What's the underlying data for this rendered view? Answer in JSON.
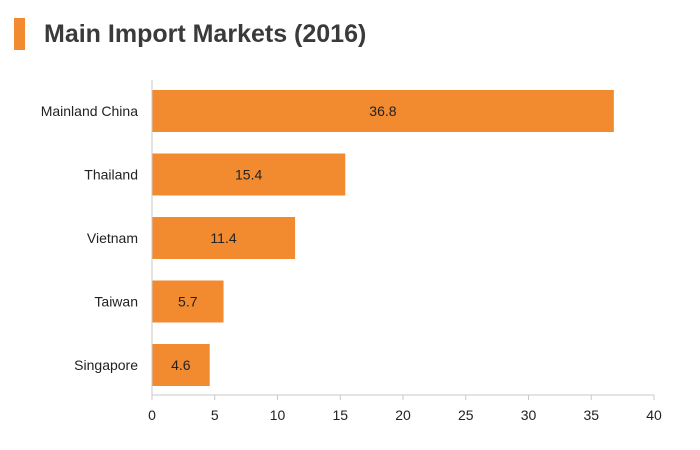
{
  "header": {
    "title": "Main Import Markets (2016)"
  },
  "colors": {
    "bar": "#f28a30",
    "accent": "#f28a30",
    "axis": "#c8c8c8"
  },
  "chart_data": {
    "type": "bar",
    "orientation": "horizontal",
    "title": "Main Import Markets (2016)",
    "xlabel": "",
    "ylabel": "",
    "categories": [
      "Mainland China",
      "Thailand",
      "Vietnam",
      "Taiwan",
      "Singapore"
    ],
    "values": [
      36.8,
      15.4,
      11.4,
      5.7,
      4.6
    ],
    "value_labels": [
      "36.8",
      "15.4",
      "11.4",
      "5.7",
      "4.6"
    ],
    "xlim": [
      0,
      40
    ],
    "xticks": [
      "0",
      "5",
      "10",
      "15",
      "20",
      "25",
      "30",
      "35",
      "40"
    ],
    "grid": false,
    "legend": "none"
  }
}
